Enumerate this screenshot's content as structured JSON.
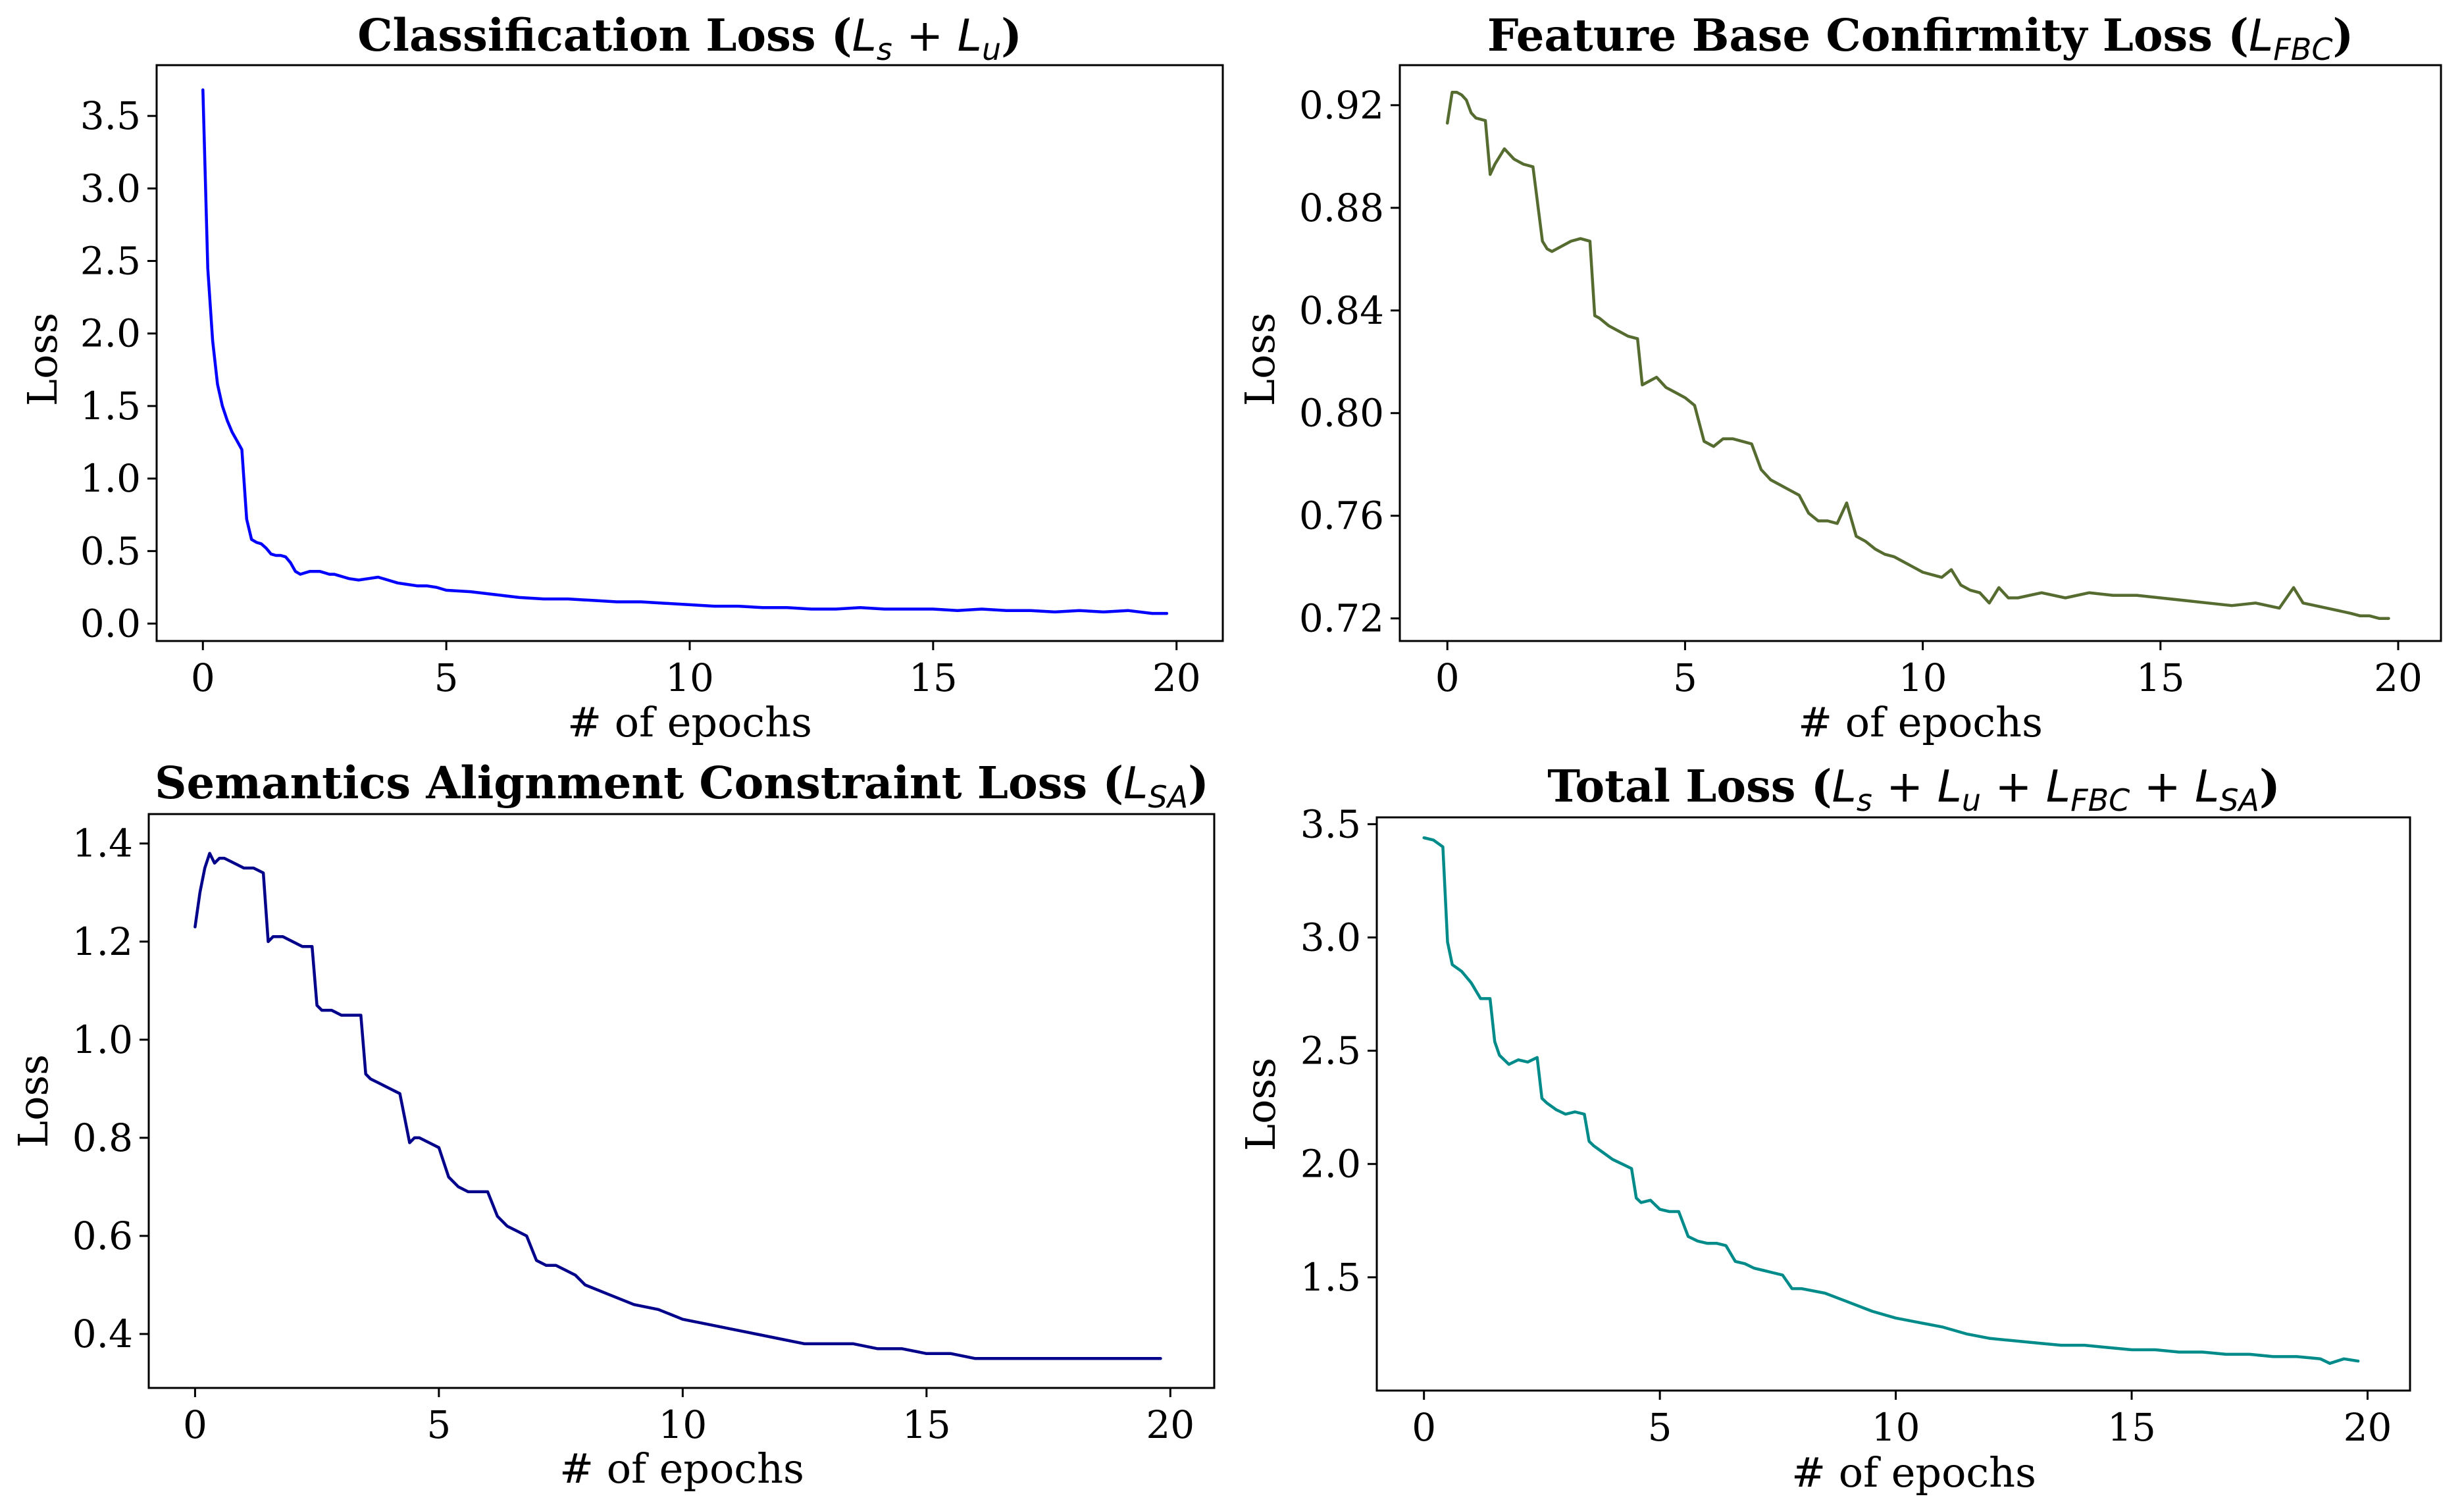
{
  "chart_data": [
    {
      "type": "line",
      "title": {
        "prefix": "Classification Loss (",
        "math": [
          "L",
          "s",
          " + ",
          "L",
          "u"
        ],
        "suffix": ")"
      },
      "xlabel": "# of epochs",
      "ylabel": "Loss",
      "xlim": [
        -0.95,
        20.95
      ],
      "ylim": [
        -0.12,
        3.85
      ],
      "xticks": [
        0,
        5,
        10,
        15,
        20
      ],
      "yticks": [
        0.0,
        0.5,
        1.0,
        1.5,
        2.0,
        2.5,
        3.0,
        3.5
      ],
      "ytick_decimals": 1,
      "color": "#0000ff",
      "grid": false,
      "x": [
        0.0,
        0.1,
        0.2,
        0.3,
        0.4,
        0.5,
        0.6,
        0.7,
        0.8,
        0.9,
        1.0,
        1.1,
        1.2,
        1.3,
        1.4,
        1.5,
        1.6,
        1.7,
        1.8,
        1.9,
        2.0,
        2.1,
        2.2,
        2.3,
        2.4,
        2.5,
        2.6,
        2.7,
        2.8,
        2.9,
        3.0,
        3.2,
        3.4,
        3.6,
        3.8,
        4.0,
        4.2,
        4.4,
        4.6,
        4.8,
        5.0,
        5.5,
        6.0,
        6.5,
        7.0,
        7.5,
        8.0,
        8.5,
        9.0,
        9.5,
        10.0,
        10.5,
        11.0,
        11.5,
        12.0,
        12.5,
        13.0,
        13.5,
        14.0,
        14.5,
        15.0,
        15.5,
        16.0,
        16.5,
        17.0,
        17.5,
        18.0,
        18.5,
        19.0,
        19.5,
        19.8
      ],
      "values": [
        3.68,
        2.45,
        1.95,
        1.65,
        1.5,
        1.4,
        1.32,
        1.26,
        1.2,
        0.72,
        0.58,
        0.56,
        0.55,
        0.52,
        0.48,
        0.47,
        0.47,
        0.46,
        0.42,
        0.36,
        0.34,
        0.35,
        0.36,
        0.36,
        0.36,
        0.35,
        0.34,
        0.34,
        0.33,
        0.32,
        0.31,
        0.3,
        0.31,
        0.32,
        0.3,
        0.28,
        0.27,
        0.26,
        0.26,
        0.25,
        0.23,
        0.22,
        0.2,
        0.18,
        0.17,
        0.17,
        0.16,
        0.15,
        0.15,
        0.14,
        0.13,
        0.12,
        0.12,
        0.11,
        0.11,
        0.1,
        0.1,
        0.11,
        0.1,
        0.1,
        0.1,
        0.09,
        0.1,
        0.09,
        0.09,
        0.08,
        0.09,
        0.08,
        0.09,
        0.07,
        0.07
      ]
    },
    {
      "type": "line",
      "title": {
        "prefix": "Feature Base Confirmity Loss (",
        "math": [
          "L",
          "FBC"
        ],
        "suffix": ")"
      },
      "xlabel": "# of epochs",
      "ylabel": "Loss",
      "xlim": [
        -1.0,
        20.9
      ],
      "ylim": [
        0.7112,
        0.9356
      ],
      "xticks": [
        0,
        5,
        10,
        15,
        20
      ],
      "yticks": [
        0.72,
        0.76,
        0.8,
        0.84,
        0.88,
        0.92
      ],
      "ytick_decimals": 2,
      "color": "#556b2f",
      "grid": false,
      "x": [
        0.0,
        0.1,
        0.2,
        0.3,
        0.4,
        0.5,
        0.6,
        0.8,
        0.9,
        1.0,
        1.2,
        1.4,
        1.6,
        1.8,
        2.0,
        2.1,
        2.2,
        2.4,
        2.6,
        2.8,
        3.0,
        3.1,
        3.2,
        3.4,
        3.6,
        3.8,
        4.0,
        4.1,
        4.2,
        4.4,
        4.6,
        4.8,
        5.0,
        5.2,
        5.4,
        5.6,
        5.8,
        6.0,
        6.2,
        6.4,
        6.6,
        6.8,
        7.0,
        7.2,
        7.4,
        7.6,
        7.8,
        8.0,
        8.2,
        8.4,
        8.6,
        8.8,
        9.0,
        9.2,
        9.4,
        9.6,
        9.8,
        10.0,
        10.2,
        10.4,
        10.6,
        10.8,
        11.0,
        11.2,
        11.4,
        11.6,
        11.8,
        12.0,
        12.5,
        13.0,
        13.5,
        14.0,
        14.5,
        15.0,
        15.5,
        16.0,
        16.5,
        17.0,
        17.5,
        17.8,
        18.0,
        18.5,
        19.0,
        19.2,
        19.4,
        19.6,
        19.8
      ],
      "values": [
        0.913,
        0.925,
        0.925,
        0.924,
        0.922,
        0.917,
        0.915,
        0.914,
        0.893,
        0.897,
        0.903,
        0.899,
        0.897,
        0.896,
        0.867,
        0.864,
        0.863,
        0.865,
        0.867,
        0.868,
        0.867,
        0.838,
        0.837,
        0.834,
        0.832,
        0.83,
        0.829,
        0.811,
        0.812,
        0.814,
        0.81,
        0.808,
        0.806,
        0.803,
        0.789,
        0.787,
        0.79,
        0.79,
        0.789,
        0.788,
        0.778,
        0.774,
        0.772,
        0.77,
        0.768,
        0.761,
        0.758,
        0.758,
        0.757,
        0.765,
        0.752,
        0.75,
        0.747,
        0.745,
        0.744,
        0.742,
        0.74,
        0.738,
        0.737,
        0.736,
        0.739,
        0.733,
        0.731,
        0.73,
        0.726,
        0.732,
        0.728,
        0.728,
        0.73,
        0.728,
        0.73,
        0.729,
        0.729,
        0.728,
        0.727,
        0.726,
        0.725,
        0.726,
        0.724,
        0.732,
        0.726,
        0.724,
        0.722,
        0.721,
        0.721,
        0.72,
        0.72
      ]
    },
    {
      "type": "line",
      "title": {
        "prefix": "Semantics Alignment Constraint Loss (",
        "math": [
          "L",
          "SA"
        ],
        "suffix": ")"
      },
      "xlabel": "# of epochs",
      "ylabel": "Loss",
      "xlim": [
        -0.95,
        20.9
      ],
      "ylim": [
        0.29,
        1.46
      ],
      "xticks": [
        0,
        5,
        10,
        15,
        20
      ],
      "yticks": [
        0.4,
        0.6,
        0.8,
        1.0,
        1.2,
        1.4
      ],
      "ytick_decimals": 1,
      "color": "#00008b",
      "grid": false,
      "x": [
        0.0,
        0.1,
        0.2,
        0.3,
        0.4,
        0.5,
        0.6,
        0.8,
        1.0,
        1.2,
        1.4,
        1.5,
        1.6,
        1.8,
        2.0,
        2.2,
        2.4,
        2.5,
        2.6,
        2.8,
        3.0,
        3.2,
        3.4,
        3.5,
        3.6,
        3.8,
        4.0,
        4.2,
        4.4,
        4.5,
        4.6,
        4.8,
        5.0,
        5.2,
        5.4,
        5.6,
        5.8,
        6.0,
        6.2,
        6.4,
        6.6,
        6.8,
        7.0,
        7.2,
        7.4,
        7.6,
        7.8,
        8.0,
        8.5,
        9.0,
        9.5,
        10.0,
        10.5,
        11.0,
        11.5,
        12.0,
        12.5,
        13.0,
        13.5,
        14.0,
        14.5,
        15.0,
        15.5,
        16.0,
        16.5,
        17.0,
        17.5,
        18.0,
        18.5,
        19.0,
        19.5,
        19.8
      ],
      "values": [
        1.23,
        1.3,
        1.35,
        1.38,
        1.36,
        1.37,
        1.37,
        1.36,
        1.35,
        1.35,
        1.34,
        1.2,
        1.21,
        1.21,
        1.2,
        1.19,
        1.19,
        1.07,
        1.06,
        1.06,
        1.05,
        1.05,
        1.05,
        0.93,
        0.92,
        0.91,
        0.9,
        0.89,
        0.79,
        0.8,
        0.8,
        0.79,
        0.78,
        0.72,
        0.7,
        0.69,
        0.69,
        0.69,
        0.64,
        0.62,
        0.61,
        0.6,
        0.55,
        0.54,
        0.54,
        0.53,
        0.52,
        0.5,
        0.48,
        0.46,
        0.45,
        0.43,
        0.42,
        0.41,
        0.4,
        0.39,
        0.38,
        0.38,
        0.38,
        0.37,
        0.37,
        0.36,
        0.36,
        0.35,
        0.35,
        0.35,
        0.35,
        0.35,
        0.35,
        0.35,
        0.35,
        0.35
      ]
    },
    {
      "type": "line",
      "title": {
        "prefix": "Total Loss (",
        "math": [
          "L",
          "s",
          " + ",
          "L",
          "u",
          " + ",
          "L",
          "FBC",
          " + ",
          "L",
          "SA"
        ],
        "suffix": ")"
      },
      "xlabel": "# of epochs",
      "ylabel": "Loss",
      "xlim": [
        -1.0,
        20.9
      ],
      "ylim": [
        1.0,
        3.53
      ],
      "xticks": [
        0,
        5,
        10,
        15,
        20
      ],
      "yticks": [
        1.5,
        2.0,
        2.5,
        3.0,
        3.5
      ],
      "ytick_decimals": 1,
      "color": "#008b8b",
      "grid": false,
      "x": [
        0.0,
        0.2,
        0.4,
        0.5,
        0.6,
        0.8,
        1.0,
        1.2,
        1.4,
        1.5,
        1.6,
        1.8,
        2.0,
        2.2,
        2.4,
        2.5,
        2.6,
        2.8,
        3.0,
        3.2,
        3.4,
        3.5,
        3.6,
        3.8,
        4.0,
        4.2,
        4.4,
        4.5,
        4.6,
        4.8,
        5.0,
        5.2,
        5.4,
        5.6,
        5.8,
        6.0,
        6.2,
        6.4,
        6.6,
        6.8,
        7.0,
        7.2,
        7.4,
        7.6,
        7.8,
        8.0,
        8.5,
        9.0,
        9.5,
        10.0,
        10.5,
        11.0,
        11.5,
        12.0,
        12.5,
        13.0,
        13.5,
        14.0,
        14.5,
        15.0,
        15.5,
        16.0,
        16.5,
        17.0,
        17.5,
        18.0,
        18.5,
        19.0,
        19.2,
        19.5,
        19.8
      ],
      "values": [
        3.44,
        3.43,
        3.4,
        2.98,
        2.88,
        2.85,
        2.8,
        2.73,
        2.73,
        2.54,
        2.48,
        2.44,
        2.46,
        2.45,
        2.47,
        2.29,
        2.27,
        2.24,
        2.22,
        2.23,
        2.22,
        2.1,
        2.08,
        2.05,
        2.02,
        2.0,
        1.98,
        1.85,
        1.83,
        1.84,
        1.8,
        1.79,
        1.79,
        1.68,
        1.66,
        1.65,
        1.65,
        1.64,
        1.57,
        1.56,
        1.54,
        1.53,
        1.52,
        1.51,
        1.45,
        1.45,
        1.43,
        1.39,
        1.35,
        1.32,
        1.3,
        1.28,
        1.25,
        1.23,
        1.22,
        1.21,
        1.2,
        1.2,
        1.19,
        1.18,
        1.18,
        1.17,
        1.17,
        1.16,
        1.16,
        1.15,
        1.15,
        1.14,
        1.12,
        1.14,
        1.13
      ]
    }
  ]
}
